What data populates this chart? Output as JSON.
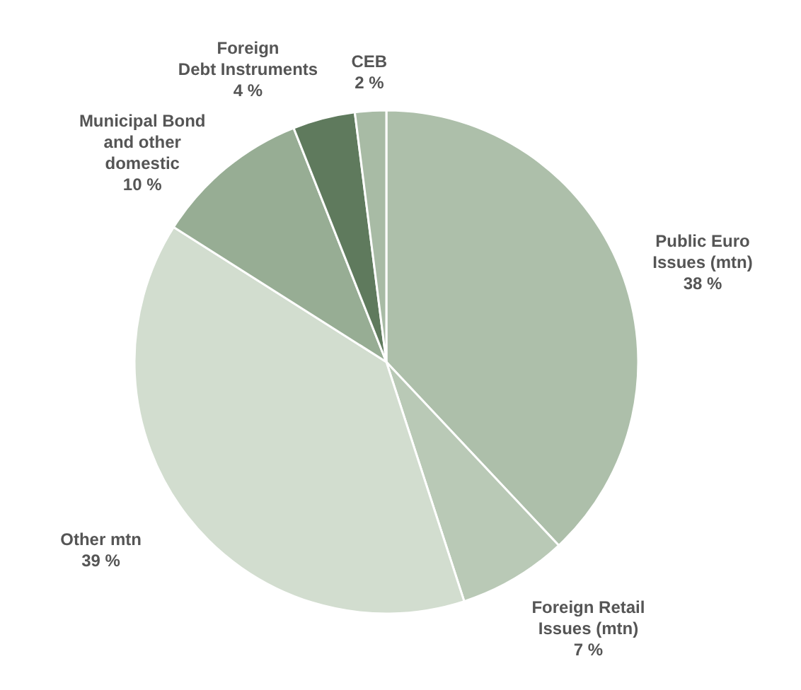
{
  "chart_data": {
    "type": "pie",
    "categories": [
      "Public Euro\nIssues (mtn)",
      "Foreign Retail\nIssues (mtn)",
      "Other mtn",
      "Municipal Bond\nand other\ndomestic",
      "Foreign\nDebt Instruments",
      "CEB"
    ],
    "values": [
      38,
      7,
      39,
      10,
      4,
      2
    ],
    "value_labels": [
      "38 %",
      "7 %",
      "39 %",
      "10 %",
      "4 %",
      "2 %"
    ],
    "colors": [
      "#adbfaa",
      "#b9c9b6",
      "#d2ddcf",
      "#97ad94",
      "#5f7a5d",
      "#a8bba5"
    ]
  }
}
